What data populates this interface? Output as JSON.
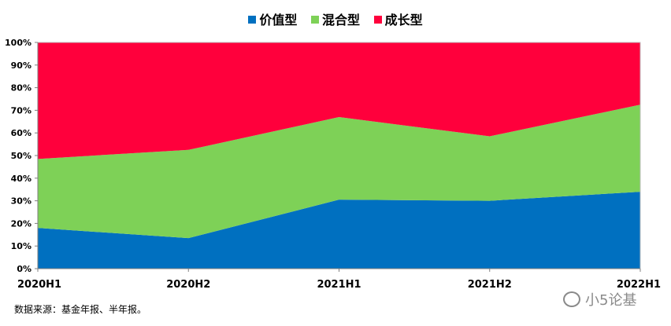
{
  "chart_data": {
    "type": "area",
    "stacked": true,
    "percent": true,
    "categories": [
      "2020H1",
      "2020H2",
      "2021H1",
      "2021H2",
      "2022H1"
    ],
    "series": [
      {
        "name": "价值型",
        "color": "#0070C0",
        "values": [
          18,
          13.5,
          30.5,
          30,
          34
        ]
      },
      {
        "name": "混合型",
        "color": "#7ED157",
        "values": [
          30.5,
          39,
          36.5,
          28.5,
          38.5
        ]
      },
      {
        "name": "成长型",
        "color": "#FF003C",
        "values": [
          51.5,
          47.5,
          33,
          41.5,
          27.5
        ]
      }
    ],
    "yticks": [
      "0%",
      "10%",
      "20%",
      "30%",
      "40%",
      "50%",
      "60%",
      "70%",
      "80%",
      "90%",
      "100%"
    ],
    "ylim": [
      0,
      100
    ],
    "legend": "top-center",
    "grid": false
  },
  "footer": {
    "source": "数据来源：基金年报、半年报。",
    "watermark": "小5论基"
  }
}
